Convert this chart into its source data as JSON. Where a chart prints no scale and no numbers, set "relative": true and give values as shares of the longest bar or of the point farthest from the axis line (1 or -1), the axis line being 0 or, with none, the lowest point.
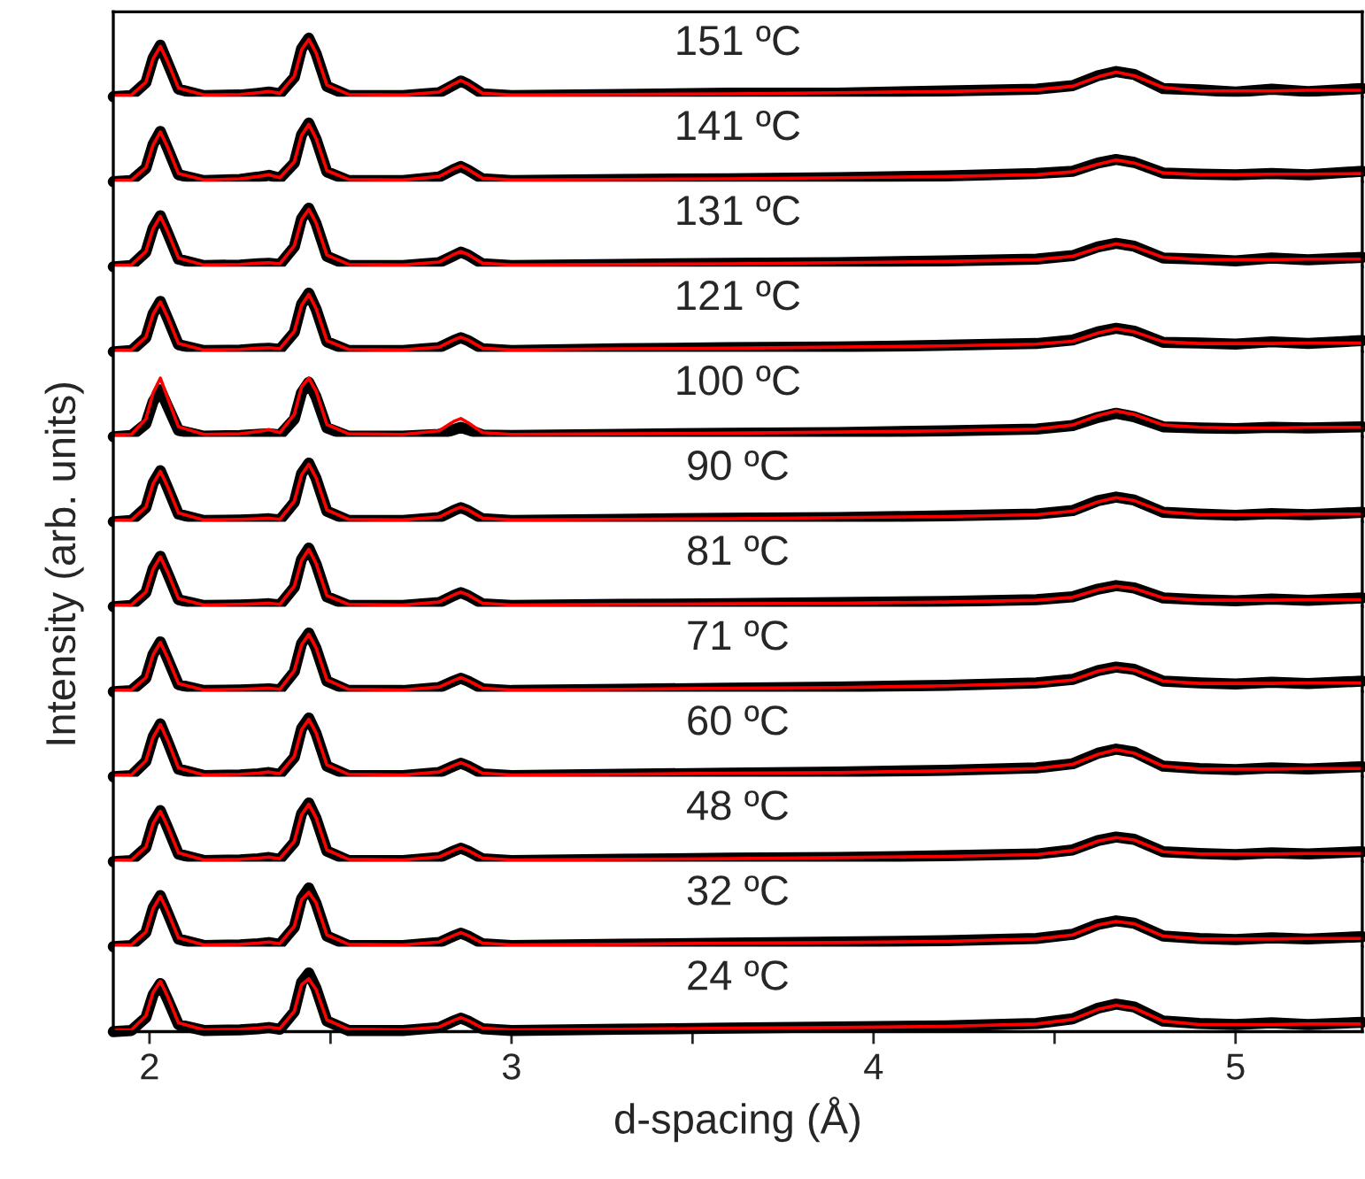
{
  "chart_data": [
    {
      "type": "line",
      "relative": true,
      "annotations": [
        "151 ºC"
      ],
      "xlim": [
        1.9,
        5.35
      ],
      "tick_labels": false,
      "x": [
        1.9,
        1.95,
        1.99,
        2.01,
        2.03,
        2.05,
        2.08,
        2.15,
        2.25,
        2.3,
        2.33,
        2.36,
        2.4,
        2.42,
        2.44,
        2.46,
        2.49,
        2.55,
        2.7,
        2.8,
        2.84,
        2.86,
        2.88,
        2.92,
        3.0,
        3.3,
        3.6,
        3.9,
        4.2,
        4.45,
        4.55,
        4.62,
        4.67,
        4.72,
        4.8,
        4.9,
        5.0,
        5.1,
        5.2,
        5.35
      ],
      "series": [
        {
          "color": "#000000",
          "values": [
            0.0,
            0.02,
            0.24,
            0.66,
            0.88,
            0.58,
            0.13,
            0.02,
            0.03,
            0.06,
            0.08,
            0.05,
            0.33,
            0.82,
            1.0,
            0.74,
            0.18,
            0.02,
            0.02,
            0.07,
            0.2,
            0.27,
            0.21,
            0.05,
            0.02,
            0.04,
            0.06,
            0.06,
            0.1,
            0.13,
            0.19,
            0.36,
            0.43,
            0.38,
            0.14,
            0.12,
            0.08,
            0.13,
            0.09,
            0.14
          ]
        },
        {
          "color": "#ff0000",
          "values": [
            0.02,
            0.03,
            0.25,
            0.65,
            0.86,
            0.6,
            0.15,
            0.03,
            0.04,
            0.07,
            0.09,
            0.06,
            0.35,
            0.8,
            0.98,
            0.75,
            0.2,
            0.04,
            0.03,
            0.08,
            0.22,
            0.28,
            0.22,
            0.06,
            0.03,
            0.04,
            0.05,
            0.07,
            0.09,
            0.12,
            0.18,
            0.34,
            0.42,
            0.36,
            0.16,
            0.1,
            0.1,
            0.1,
            0.11,
            0.11
          ]
        }
      ]
    },
    {
      "type": "line",
      "relative": true,
      "annotations": [
        "141 ºC"
      ],
      "xlim": [
        1.9,
        5.35
      ],
      "tick_labels": false,
      "x": [
        1.9,
        1.95,
        1.99,
        2.01,
        2.03,
        2.05,
        2.08,
        2.15,
        2.25,
        2.3,
        2.33,
        2.36,
        2.4,
        2.42,
        2.44,
        2.46,
        2.49,
        2.55,
        2.7,
        2.8,
        2.84,
        2.86,
        2.88,
        2.92,
        3.0,
        3.3,
        3.6,
        3.9,
        4.2,
        4.45,
        4.55,
        4.62,
        4.67,
        4.72,
        4.8,
        4.9,
        5.0,
        5.1,
        5.2,
        5.35
      ],
      "series": [
        {
          "color": "#000000",
          "values": [
            0.0,
            0.02,
            0.23,
            0.64,
            0.86,
            0.57,
            0.12,
            0.02,
            0.04,
            0.08,
            0.11,
            0.06,
            0.32,
            0.8,
            1.0,
            0.73,
            0.17,
            0.02,
            0.02,
            0.08,
            0.21,
            0.26,
            0.2,
            0.05,
            0.02,
            0.04,
            0.05,
            0.07,
            0.1,
            0.14,
            0.18,
            0.32,
            0.38,
            0.33,
            0.15,
            0.13,
            0.12,
            0.14,
            0.12,
            0.18
          ]
        },
        {
          "color": "#ff0000",
          "values": [
            0.02,
            0.03,
            0.24,
            0.63,
            0.85,
            0.59,
            0.14,
            0.03,
            0.05,
            0.09,
            0.12,
            0.07,
            0.34,
            0.79,
            0.98,
            0.74,
            0.19,
            0.04,
            0.03,
            0.09,
            0.22,
            0.27,
            0.21,
            0.06,
            0.03,
            0.04,
            0.05,
            0.07,
            0.09,
            0.12,
            0.17,
            0.3,
            0.37,
            0.32,
            0.15,
            0.12,
            0.12,
            0.13,
            0.13,
            0.14
          ]
        }
      ]
    },
    {
      "type": "line",
      "relative": true,
      "annotations": [
        "131 ºC"
      ],
      "xlim": [
        1.9,
        5.35
      ],
      "tick_labels": false,
      "x": [
        1.9,
        1.95,
        1.99,
        2.01,
        2.03,
        2.05,
        2.08,
        2.15,
        2.25,
        2.3,
        2.33,
        2.36,
        2.4,
        2.42,
        2.44,
        2.46,
        2.49,
        2.55,
        2.7,
        2.8,
        2.84,
        2.86,
        2.88,
        2.92,
        3.0,
        3.3,
        3.6,
        3.9,
        4.2,
        4.45,
        4.55,
        4.62,
        4.67,
        4.72,
        4.8,
        4.9,
        5.0,
        5.1,
        5.2,
        5.35
      ],
      "series": [
        {
          "color": "#000000",
          "values": [
            0.0,
            0.02,
            0.25,
            0.66,
            0.87,
            0.58,
            0.13,
            0.02,
            0.03,
            0.05,
            0.06,
            0.04,
            0.34,
            0.82,
            1.0,
            0.74,
            0.18,
            0.02,
            0.02,
            0.07,
            0.19,
            0.25,
            0.2,
            0.05,
            0.02,
            0.04,
            0.06,
            0.07,
            0.1,
            0.13,
            0.19,
            0.34,
            0.4,
            0.35,
            0.15,
            0.13,
            0.1,
            0.15,
            0.12,
            0.16
          ]
        },
        {
          "color": "#ff0000",
          "values": [
            0.02,
            0.03,
            0.26,
            0.65,
            0.86,
            0.6,
            0.15,
            0.03,
            0.04,
            0.06,
            0.07,
            0.05,
            0.36,
            0.8,
            0.98,
            0.75,
            0.2,
            0.04,
            0.03,
            0.08,
            0.21,
            0.26,
            0.21,
            0.06,
            0.03,
            0.04,
            0.05,
            0.07,
            0.09,
            0.12,
            0.18,
            0.32,
            0.39,
            0.34,
            0.16,
            0.12,
            0.12,
            0.12,
            0.13,
            0.13
          ]
        }
      ]
    },
    {
      "type": "line",
      "relative": true,
      "annotations": [
        "121 ºC"
      ],
      "xlim": [
        1.9,
        5.35
      ],
      "tick_labels": false,
      "x": [
        1.9,
        1.95,
        1.99,
        2.01,
        2.03,
        2.05,
        2.08,
        2.15,
        2.25,
        2.3,
        2.33,
        2.36,
        2.4,
        2.42,
        2.44,
        2.46,
        2.49,
        2.55,
        2.7,
        2.8,
        2.84,
        2.86,
        2.88,
        2.92,
        3.0,
        3.3,
        3.6,
        3.9,
        4.2,
        4.45,
        4.55,
        4.62,
        4.67,
        4.72,
        4.8,
        4.9,
        5.0,
        5.1,
        5.2,
        5.35
      ],
      "series": [
        {
          "color": "#000000",
          "values": [
            0.0,
            0.02,
            0.24,
            0.65,
            0.86,
            0.57,
            0.12,
            0.02,
            0.03,
            0.05,
            0.06,
            0.04,
            0.33,
            0.81,
            1.0,
            0.73,
            0.17,
            0.02,
            0.02,
            0.07,
            0.19,
            0.24,
            0.19,
            0.05,
            0.02,
            0.05,
            0.07,
            0.08,
            0.11,
            0.14,
            0.2,
            0.34,
            0.4,
            0.35,
            0.16,
            0.15,
            0.13,
            0.17,
            0.14,
            0.19
          ]
        },
        {
          "color": "#ff0000",
          "values": [
            0.02,
            0.03,
            0.25,
            0.64,
            0.85,
            0.59,
            0.14,
            0.03,
            0.04,
            0.06,
            0.07,
            0.05,
            0.35,
            0.79,
            0.98,
            0.74,
            0.19,
            0.04,
            0.03,
            0.08,
            0.2,
            0.25,
            0.2,
            0.06,
            0.03,
            0.05,
            0.06,
            0.08,
            0.1,
            0.13,
            0.18,
            0.32,
            0.39,
            0.34,
            0.17,
            0.14,
            0.14,
            0.14,
            0.15,
            0.15
          ]
        }
      ]
    },
    {
      "type": "line",
      "relative": true,
      "annotations": [
        "100 ºC"
      ],
      "xlim": [
        1.9,
        5.35
      ],
      "tick_labels": false,
      "x": [
        1.9,
        1.95,
        1.99,
        2.01,
        2.03,
        2.05,
        2.08,
        2.15,
        2.25,
        2.3,
        2.33,
        2.36,
        2.4,
        2.42,
        2.44,
        2.46,
        2.49,
        2.55,
        2.7,
        2.8,
        2.84,
        2.86,
        2.88,
        2.92,
        3.0,
        3.3,
        3.6,
        3.9,
        4.2,
        4.45,
        4.55,
        4.62,
        4.67,
        4.72,
        4.8,
        4.9,
        5.0,
        5.1,
        5.2,
        5.35
      ],
      "series": [
        {
          "color": "#000000",
          "values": [
            0.0,
            0.02,
            0.22,
            0.6,
            0.8,
            0.52,
            0.11,
            0.01,
            0.02,
            0.04,
            0.05,
            0.03,
            0.3,
            0.75,
            0.93,
            0.68,
            0.15,
            0.01,
            0.01,
            0.04,
            0.12,
            0.16,
            0.12,
            0.03,
            0.02,
            0.04,
            0.06,
            0.07,
            0.1,
            0.13,
            0.19,
            0.33,
            0.4,
            0.34,
            0.17,
            0.15,
            0.14,
            0.16,
            0.15,
            0.17
          ]
        },
        {
          "color": "#ff0000",
          "values": [
            0.03,
            0.04,
            0.3,
            0.75,
            1.0,
            0.66,
            0.17,
            0.04,
            0.05,
            0.09,
            0.12,
            0.07,
            0.38,
            0.85,
            1.0,
            0.78,
            0.21,
            0.05,
            0.04,
            0.1,
            0.26,
            0.31,
            0.24,
            0.07,
            0.04,
            0.05,
            0.06,
            0.08,
            0.1,
            0.13,
            0.2,
            0.36,
            0.44,
            0.38,
            0.2,
            0.16,
            0.15,
            0.15,
            0.16,
            0.16
          ]
        }
      ]
    },
    {
      "type": "line",
      "relative": true,
      "annotations": [
        "90 ºC"
      ],
      "xlim": [
        1.9,
        5.35
      ],
      "tick_labels": false,
      "x": [
        1.9,
        1.95,
        1.99,
        2.01,
        2.03,
        2.05,
        2.08,
        2.15,
        2.25,
        2.3,
        2.33,
        2.36,
        2.4,
        2.42,
        2.44,
        2.46,
        2.49,
        2.55,
        2.7,
        2.8,
        2.84,
        2.86,
        2.88,
        2.92,
        3.0,
        3.3,
        3.6,
        3.9,
        4.2,
        4.45,
        4.55,
        4.62,
        4.67,
        4.72,
        4.8,
        4.9,
        5.0,
        5.1,
        5.2,
        5.35
      ],
      "series": [
        {
          "color": "#000000",
          "values": [
            0.0,
            0.02,
            0.24,
            0.66,
            0.87,
            0.58,
            0.13,
            0.02,
            0.03,
            0.04,
            0.05,
            0.03,
            0.33,
            0.82,
            1.0,
            0.74,
            0.18,
            0.02,
            0.02,
            0.07,
            0.19,
            0.24,
            0.19,
            0.05,
            0.02,
            0.04,
            0.06,
            0.07,
            0.1,
            0.13,
            0.19,
            0.36,
            0.42,
            0.37,
            0.16,
            0.13,
            0.11,
            0.14,
            0.12,
            0.16
          ]
        },
        {
          "color": "#ff0000",
          "values": [
            0.02,
            0.03,
            0.25,
            0.65,
            0.86,
            0.6,
            0.15,
            0.03,
            0.04,
            0.05,
            0.06,
            0.04,
            0.35,
            0.8,
            0.98,
            0.75,
            0.2,
            0.04,
            0.03,
            0.08,
            0.2,
            0.25,
            0.2,
            0.06,
            0.03,
            0.04,
            0.05,
            0.07,
            0.09,
            0.12,
            0.18,
            0.34,
            0.41,
            0.36,
            0.17,
            0.12,
            0.12,
            0.12,
            0.13,
            0.13
          ]
        }
      ]
    },
    {
      "type": "line",
      "relative": true,
      "ylabel": "Intensity (arb. units)",
      "annotations": [
        "81 ºC"
      ],
      "xlim": [
        1.9,
        5.35
      ],
      "tick_labels": false,
      "x": [
        1.9,
        1.95,
        1.99,
        2.01,
        2.03,
        2.05,
        2.08,
        2.15,
        2.25,
        2.3,
        2.33,
        2.36,
        2.4,
        2.42,
        2.44,
        2.46,
        2.49,
        2.55,
        2.7,
        2.8,
        2.84,
        2.86,
        2.88,
        2.92,
        3.0,
        3.3,
        3.6,
        3.9,
        4.2,
        4.45,
        4.55,
        4.62,
        4.67,
        4.72,
        4.8,
        4.9,
        5.0,
        5.1,
        5.2,
        5.35
      ],
      "series": [
        {
          "color": "#000000",
          "values": [
            0.0,
            0.02,
            0.24,
            0.65,
            0.86,
            0.57,
            0.12,
            0.02,
            0.03,
            0.04,
            0.05,
            0.03,
            0.33,
            0.81,
            1.0,
            0.73,
            0.17,
            0.02,
            0.02,
            0.07,
            0.19,
            0.24,
            0.19,
            0.05,
            0.02,
            0.04,
            0.05,
            0.07,
            0.09,
            0.12,
            0.17,
            0.3,
            0.36,
            0.32,
            0.15,
            0.12,
            0.1,
            0.13,
            0.11,
            0.15
          ]
        },
        {
          "color": "#ff0000",
          "values": [
            0.02,
            0.03,
            0.25,
            0.64,
            0.85,
            0.59,
            0.14,
            0.03,
            0.04,
            0.05,
            0.06,
            0.04,
            0.35,
            0.79,
            0.98,
            0.74,
            0.19,
            0.04,
            0.03,
            0.08,
            0.2,
            0.25,
            0.2,
            0.06,
            0.03,
            0.04,
            0.05,
            0.06,
            0.08,
            0.11,
            0.16,
            0.29,
            0.35,
            0.31,
            0.15,
            0.11,
            0.11,
            0.11,
            0.12,
            0.12
          ]
        }
      ]
    },
    {
      "type": "line",
      "relative": true,
      "annotations": [
        "71 ºC"
      ],
      "xlim": [
        1.9,
        5.35
      ],
      "tick_labels": false,
      "x": [
        1.9,
        1.95,
        1.99,
        2.01,
        2.03,
        2.05,
        2.08,
        2.15,
        2.25,
        2.3,
        2.33,
        2.36,
        2.4,
        2.42,
        2.44,
        2.46,
        2.49,
        2.55,
        2.7,
        2.8,
        2.84,
        2.86,
        2.88,
        2.92,
        3.0,
        3.3,
        3.6,
        3.9,
        4.2,
        4.45,
        4.55,
        4.62,
        4.67,
        4.72,
        4.8,
        4.9,
        5.0,
        5.1,
        5.2,
        5.35
      ],
      "series": [
        {
          "color": "#000000",
          "values": [
            0.0,
            0.02,
            0.23,
            0.64,
            0.85,
            0.56,
            0.12,
            0.02,
            0.03,
            0.04,
            0.05,
            0.03,
            0.34,
            0.82,
            1.0,
            0.74,
            0.18,
            0.02,
            0.02,
            0.07,
            0.18,
            0.23,
            0.18,
            0.05,
            0.02,
            0.04,
            0.06,
            0.08,
            0.11,
            0.15,
            0.21,
            0.36,
            0.42,
            0.38,
            0.18,
            0.15,
            0.13,
            0.16,
            0.14,
            0.18
          ]
        },
        {
          "color": "#ff0000",
          "values": [
            0.02,
            0.03,
            0.24,
            0.63,
            0.84,
            0.58,
            0.14,
            0.03,
            0.04,
            0.05,
            0.06,
            0.04,
            0.36,
            0.8,
            0.98,
            0.75,
            0.2,
            0.04,
            0.03,
            0.08,
            0.19,
            0.24,
            0.19,
            0.06,
            0.03,
            0.04,
            0.06,
            0.07,
            0.1,
            0.14,
            0.2,
            0.35,
            0.41,
            0.37,
            0.18,
            0.14,
            0.14,
            0.14,
            0.15,
            0.15
          ]
        }
      ]
    },
    {
      "type": "line",
      "relative": true,
      "annotations": [
        "60 ºC"
      ],
      "xlim": [
        1.9,
        5.35
      ],
      "tick_labels": false,
      "x": [
        1.9,
        1.95,
        1.99,
        2.01,
        2.03,
        2.05,
        2.08,
        2.15,
        2.25,
        2.3,
        2.33,
        2.36,
        2.4,
        2.42,
        2.44,
        2.46,
        2.49,
        2.55,
        2.7,
        2.8,
        2.84,
        2.86,
        2.88,
        2.92,
        3.0,
        3.3,
        3.6,
        3.9,
        4.2,
        4.45,
        4.55,
        4.62,
        4.67,
        4.72,
        4.8,
        4.9,
        5.0,
        5.1,
        5.2,
        5.35
      ],
      "series": [
        {
          "color": "#000000",
          "values": [
            0.0,
            0.02,
            0.26,
            0.68,
            0.9,
            0.6,
            0.13,
            0.02,
            0.03,
            0.05,
            0.07,
            0.04,
            0.33,
            0.82,
            1.0,
            0.74,
            0.18,
            0.02,
            0.02,
            0.07,
            0.18,
            0.23,
            0.18,
            0.05,
            0.02,
            0.04,
            0.06,
            0.08,
            0.11,
            0.15,
            0.22,
            0.4,
            0.47,
            0.42,
            0.18,
            0.14,
            0.12,
            0.15,
            0.13,
            0.17
          ]
        },
        {
          "color": "#ff0000",
          "values": [
            0.02,
            0.03,
            0.27,
            0.67,
            0.89,
            0.62,
            0.15,
            0.03,
            0.04,
            0.06,
            0.08,
            0.05,
            0.35,
            0.8,
            0.98,
            0.75,
            0.2,
            0.04,
            0.03,
            0.08,
            0.19,
            0.24,
            0.19,
            0.06,
            0.03,
            0.04,
            0.06,
            0.07,
            0.1,
            0.14,
            0.21,
            0.38,
            0.46,
            0.4,
            0.18,
            0.13,
            0.13,
            0.13,
            0.14,
            0.14
          ]
        }
      ]
    },
    {
      "type": "line",
      "relative": true,
      "annotations": [
        "48 ºC"
      ],
      "xlim": [
        1.9,
        5.35
      ],
      "tick_labels": false,
      "x": [
        1.9,
        1.95,
        1.99,
        2.01,
        2.03,
        2.05,
        2.08,
        2.15,
        2.25,
        2.3,
        2.33,
        2.36,
        2.4,
        2.42,
        2.44,
        2.46,
        2.49,
        2.55,
        2.7,
        2.8,
        2.84,
        2.86,
        2.88,
        2.92,
        3.0,
        3.3,
        3.6,
        3.9,
        4.2,
        4.45,
        4.55,
        4.62,
        4.67,
        4.72,
        4.8,
        4.9,
        5.0,
        5.1,
        5.2,
        5.35
      ],
      "series": [
        {
          "color": "#000000",
          "values": [
            0.0,
            0.02,
            0.24,
            0.66,
            0.87,
            0.58,
            0.13,
            0.02,
            0.03,
            0.05,
            0.07,
            0.04,
            0.33,
            0.82,
            1.0,
            0.74,
            0.18,
            0.02,
            0.02,
            0.07,
            0.18,
            0.23,
            0.18,
            0.05,
            0.02,
            0.04,
            0.06,
            0.07,
            0.1,
            0.13,
            0.2,
            0.36,
            0.42,
            0.38,
            0.17,
            0.14,
            0.12,
            0.15,
            0.13,
            0.17
          ]
        },
        {
          "color": "#ff0000",
          "values": [
            0.02,
            0.03,
            0.25,
            0.65,
            0.86,
            0.6,
            0.15,
            0.03,
            0.04,
            0.06,
            0.08,
            0.05,
            0.35,
            0.8,
            0.98,
            0.75,
            0.2,
            0.04,
            0.03,
            0.08,
            0.19,
            0.24,
            0.19,
            0.06,
            0.03,
            0.04,
            0.05,
            0.07,
            0.09,
            0.12,
            0.19,
            0.35,
            0.41,
            0.37,
            0.17,
            0.13,
            0.13,
            0.13,
            0.14,
            0.14
          ]
        }
      ]
    },
    {
      "type": "line",
      "relative": true,
      "annotations": [
        "32 ºC"
      ],
      "xlim": [
        1.9,
        5.35
      ],
      "tick_labels": false,
      "x": [
        1.9,
        1.95,
        1.99,
        2.01,
        2.03,
        2.05,
        2.08,
        2.15,
        2.25,
        2.3,
        2.33,
        2.36,
        2.4,
        2.42,
        2.44,
        2.46,
        2.49,
        2.55,
        2.7,
        2.8,
        2.84,
        2.86,
        2.88,
        2.92,
        3.0,
        3.3,
        3.6,
        3.9,
        4.2,
        4.45,
        4.55,
        4.62,
        4.67,
        4.72,
        4.8,
        4.9,
        5.0,
        5.1,
        5.2,
        5.35
      ],
      "series": [
        {
          "color": "#000000",
          "values": [
            0.0,
            0.02,
            0.24,
            0.66,
            0.87,
            0.58,
            0.13,
            0.02,
            0.03,
            0.05,
            0.07,
            0.04,
            0.33,
            0.82,
            1.0,
            0.74,
            0.18,
            0.02,
            0.02,
            0.07,
            0.18,
            0.23,
            0.18,
            0.05,
            0.02,
            0.04,
            0.06,
            0.08,
            0.1,
            0.14,
            0.21,
            0.38,
            0.44,
            0.4,
            0.18,
            0.14,
            0.12,
            0.15,
            0.13,
            0.17
          ]
        },
        {
          "color": "#ff0000",
          "values": [
            0.02,
            0.03,
            0.25,
            0.65,
            0.86,
            0.6,
            0.15,
            0.03,
            0.04,
            0.06,
            0.08,
            0.05,
            0.35,
            0.8,
            0.93,
            0.75,
            0.2,
            0.04,
            0.03,
            0.08,
            0.19,
            0.24,
            0.19,
            0.06,
            0.03,
            0.04,
            0.06,
            0.07,
            0.09,
            0.13,
            0.2,
            0.37,
            0.43,
            0.39,
            0.18,
            0.13,
            0.13,
            0.13,
            0.14,
            0.14
          ]
        }
      ]
    },
    {
      "type": "line",
      "relative": true,
      "annotations": [
        "24 ºC"
      ],
      "xlabel": "d-spacing (Å)",
      "xlim": [
        1.9,
        5.35
      ],
      "xticks": [
        2,
        {
          "value": 2.5,
          "label": null
        },
        3,
        {
          "value": 3.5,
          "label": null
        },
        4,
        {
          "value": 4.5,
          "label": null
        },
        5
      ],
      "tick_labels": "x",
      "x": [
        1.9,
        1.95,
        1.99,
        2.01,
        2.03,
        2.05,
        2.08,
        2.15,
        2.25,
        2.3,
        2.33,
        2.36,
        2.4,
        2.42,
        2.44,
        2.46,
        2.49,
        2.55,
        2.7,
        2.8,
        2.84,
        2.86,
        2.88,
        2.92,
        3.0,
        3.3,
        3.6,
        3.9,
        4.2,
        4.45,
        4.55,
        4.62,
        4.67,
        4.72,
        4.8,
        4.9,
        5.0,
        5.1,
        5.2,
        5.35
      ],
      "series": [
        {
          "color": "#000000",
          "values": [
            0.0,
            0.02,
            0.24,
            0.63,
            0.82,
            0.55,
            0.12,
            0.02,
            0.03,
            0.05,
            0.07,
            0.04,
            0.34,
            0.84,
            1.0,
            0.74,
            0.18,
            0.02,
            0.02,
            0.07,
            0.18,
            0.23,
            0.18,
            0.05,
            0.02,
            0.04,
            0.06,
            0.08,
            0.1,
            0.14,
            0.22,
            0.4,
            0.47,
            0.42,
            0.18,
            0.14,
            0.12,
            0.15,
            0.12,
            0.16
          ]
        },
        {
          "color": "#ff0000",
          "values": [
            0.02,
            0.03,
            0.27,
            0.67,
            0.86,
            0.6,
            0.15,
            0.03,
            0.04,
            0.06,
            0.08,
            0.05,
            0.35,
            0.8,
            0.9,
            0.72,
            0.2,
            0.04,
            0.03,
            0.08,
            0.19,
            0.24,
            0.19,
            0.06,
            0.03,
            0.04,
            0.06,
            0.07,
            0.09,
            0.13,
            0.21,
            0.38,
            0.45,
            0.4,
            0.18,
            0.12,
            0.12,
            0.12,
            0.13,
            0.13
          ]
        }
      ]
    }
  ]
}
